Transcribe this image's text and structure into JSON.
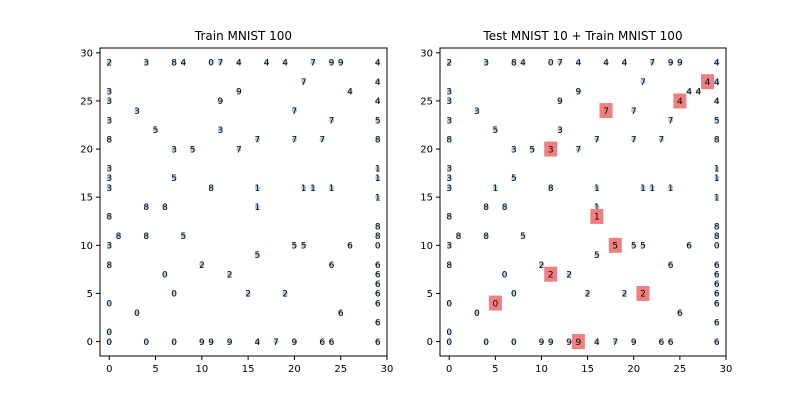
{
  "chart_data": [
    {
      "type": "scatter",
      "title": "Train MNIST 100",
      "xlim": [
        -1,
        30
      ],
      "ylim": [
        -1.5,
        30.5
      ],
      "xticks": [
        0,
        5,
        10,
        15,
        20,
        25,
        30
      ],
      "yticks": [
        0,
        5,
        10,
        15,
        20,
        25,
        30
      ],
      "marker_color": "#aecde6",
      "points": [
        {
          "x": 0,
          "y": 29,
          "label": "2"
        },
        {
          "x": 4,
          "y": 29,
          "label": "3"
        },
        {
          "x": 7,
          "y": 29,
          "label": "8"
        },
        {
          "x": 8,
          "y": 29,
          "label": "4"
        },
        {
          "x": 11,
          "y": 29,
          "label": "0"
        },
        {
          "x": 12,
          "y": 29,
          "label": "7"
        },
        {
          "x": 14,
          "y": 29,
          "label": "4"
        },
        {
          "x": 17,
          "y": 29,
          "label": "4"
        },
        {
          "x": 19,
          "y": 29,
          "label": "4"
        },
        {
          "x": 22,
          "y": 29,
          "label": "7"
        },
        {
          "x": 24,
          "y": 29,
          "label": "9"
        },
        {
          "x": 25,
          "y": 29,
          "label": "9"
        },
        {
          "x": 29,
          "y": 29,
          "label": "4"
        },
        {
          "x": 21,
          "y": 27,
          "label": "7"
        },
        {
          "x": 29,
          "y": 27,
          "label": "4"
        },
        {
          "x": 0,
          "y": 26,
          "label": "3"
        },
        {
          "x": 14,
          "y": 26,
          "label": "9"
        },
        {
          "x": 26,
          "y": 26,
          "label": "4"
        },
        {
          "x": 0,
          "y": 25,
          "label": "3"
        },
        {
          "x": 12,
          "y": 25,
          "label": "9"
        },
        {
          "x": 29,
          "y": 25,
          "label": "4"
        },
        {
          "x": 3,
          "y": 24,
          "label": "3"
        },
        {
          "x": 20,
          "y": 24,
          "label": "7"
        },
        {
          "x": 0,
          "y": 23,
          "label": "3"
        },
        {
          "x": 24,
          "y": 23,
          "label": "7"
        },
        {
          "x": 29,
          "y": 23,
          "label": "5"
        },
        {
          "x": 5,
          "y": 22,
          "label": "5"
        },
        {
          "x": 12,
          "y": 22,
          "label": "3"
        },
        {
          "x": 0,
          "y": 21,
          "label": "8"
        },
        {
          "x": 16,
          "y": 21,
          "label": "7"
        },
        {
          "x": 20,
          "y": 21,
          "label": "7"
        },
        {
          "x": 23,
          "y": 21,
          "label": "7"
        },
        {
          "x": 29,
          "y": 21,
          "label": "8"
        },
        {
          "x": 7,
          "y": 20,
          "label": "3"
        },
        {
          "x": 9,
          "y": 20,
          "label": "5"
        },
        {
          "x": 14,
          "y": 20,
          "label": "7"
        },
        {
          "x": 0,
          "y": 18,
          "label": "3"
        },
        {
          "x": 29,
          "y": 18,
          "label": "1"
        },
        {
          "x": 0,
          "y": 17,
          "label": "3"
        },
        {
          "x": 7,
          "y": 17,
          "label": "5"
        },
        {
          "x": 29,
          "y": 17,
          "label": "1"
        },
        {
          "x": 0,
          "y": 16,
          "label": "3"
        },
        {
          "x": 11,
          "y": 16,
          "label": "8"
        },
        {
          "x": 16,
          "y": 16,
          "label": "1"
        },
        {
          "x": 21,
          "y": 16,
          "label": "1"
        },
        {
          "x": 22,
          "y": 16,
          "label": "1"
        },
        {
          "x": 24,
          "y": 16,
          "label": "1"
        },
        {
          "x": 29,
          "y": 15,
          "label": "1"
        },
        {
          "x": 4,
          "y": 14,
          "label": "8"
        },
        {
          "x": 6,
          "y": 14,
          "label": "8"
        },
        {
          "x": 16,
          "y": 14,
          "label": "1"
        },
        {
          "x": 0,
          "y": 13,
          "label": "8"
        },
        {
          "x": 29,
          "y": 12,
          "label": "8"
        },
        {
          "x": 1,
          "y": 11,
          "label": "8"
        },
        {
          "x": 4,
          "y": 11,
          "label": "8"
        },
        {
          "x": 8,
          "y": 11,
          "label": "5"
        },
        {
          "x": 29,
          "y": 11,
          "label": "8"
        },
        {
          "x": 0,
          "y": 10,
          "label": "3"
        },
        {
          "x": 20,
          "y": 10,
          "label": "5"
        },
        {
          "x": 21,
          "y": 10,
          "label": "5"
        },
        {
          "x": 26,
          "y": 10,
          "label": "6"
        },
        {
          "x": 29,
          "y": 10,
          "label": "0"
        },
        {
          "x": 16,
          "y": 9,
          "label": "5"
        },
        {
          "x": 0,
          "y": 8,
          "label": "8"
        },
        {
          "x": 10,
          "y": 8,
          "label": "2"
        },
        {
          "x": 24,
          "y": 8,
          "label": "6"
        },
        {
          "x": 29,
          "y": 8,
          "label": "6"
        },
        {
          "x": 6,
          "y": 7,
          "label": "0"
        },
        {
          "x": 13,
          "y": 7,
          "label": "2"
        },
        {
          "x": 29,
          "y": 7,
          "label": "6"
        },
        {
          "x": 29,
          "y": 6,
          "label": "6"
        },
        {
          "x": 7,
          "y": 5,
          "label": "0"
        },
        {
          "x": 15,
          "y": 5,
          "label": "2"
        },
        {
          "x": 19,
          "y": 5,
          "label": "2"
        },
        {
          "x": 29,
          "y": 5,
          "label": "6"
        },
        {
          "x": 0,
          "y": 4,
          "label": "0"
        },
        {
          "x": 29,
          "y": 4,
          "label": "6"
        },
        {
          "x": 3,
          "y": 3,
          "label": "0"
        },
        {
          "x": 25,
          "y": 3,
          "label": "6"
        },
        {
          "x": 29,
          "y": 2,
          "label": "6"
        },
        {
          "x": 0,
          "y": 1,
          "label": "0"
        },
        {
          "x": 0,
          "y": 0,
          "label": "0"
        },
        {
          "x": 4,
          "y": 0,
          "label": "0"
        },
        {
          "x": 7,
          "y": 0,
          "label": "0"
        },
        {
          "x": 10,
          "y": 0,
          "label": "9"
        },
        {
          "x": 11,
          "y": 0,
          "label": "9"
        },
        {
          "x": 13,
          "y": 0,
          "label": "9"
        },
        {
          "x": 16,
          "y": 0,
          "label": "4"
        },
        {
          "x": 18,
          "y": 0,
          "label": "7"
        },
        {
          "x": 20,
          "y": 0,
          "label": "9"
        },
        {
          "x": 23,
          "y": 0,
          "label": "6"
        },
        {
          "x": 24,
          "y": 0,
          "label": "6"
        },
        {
          "x": 29,
          "y": 0,
          "label": "6"
        }
      ]
    },
    {
      "type": "scatter",
      "title": "Test MNIST 10 + Train MNIST 100",
      "xlim": [
        -1,
        30
      ],
      "ylim": [
        -1.5,
        30.5
      ],
      "xticks": [
        0,
        5,
        10,
        15,
        20,
        25,
        30
      ],
      "yticks": [
        0,
        5,
        10,
        15,
        20,
        25,
        30
      ],
      "marker_color": "#aecde6",
      "highlight_color": "#f08080",
      "points_ref": "train",
      "extra_points": [
        {
          "x": 5,
          "y": 16,
          "label": "1"
        }
      ],
      "highlights": [
        {
          "x": 28,
          "y": 27,
          "label": "4"
        },
        {
          "x": 25,
          "y": 25,
          "label": "4"
        },
        {
          "x": 17,
          "y": 24,
          "label": "7"
        },
        {
          "x": 11,
          "y": 20,
          "label": "3"
        },
        {
          "x": 16,
          "y": 13,
          "label": "1"
        },
        {
          "x": 18,
          "y": 10,
          "label": "5"
        },
        {
          "x": 11,
          "y": 7,
          "label": "2"
        },
        {
          "x": 21,
          "y": 5,
          "label": "2"
        },
        {
          "x": 5,
          "y": 4,
          "label": "0"
        },
        {
          "x": 14,
          "y": 0,
          "label": "9"
        }
      ],
      "dup_points": [
        {
          "x": 27,
          "y": 26,
          "label": "4"
        },
        {
          "x": 29,
          "y": 27,
          "label": "4"
        },
        {
          "x": 16,
          "y": 14,
          "label": "1"
        }
      ]
    }
  ]
}
